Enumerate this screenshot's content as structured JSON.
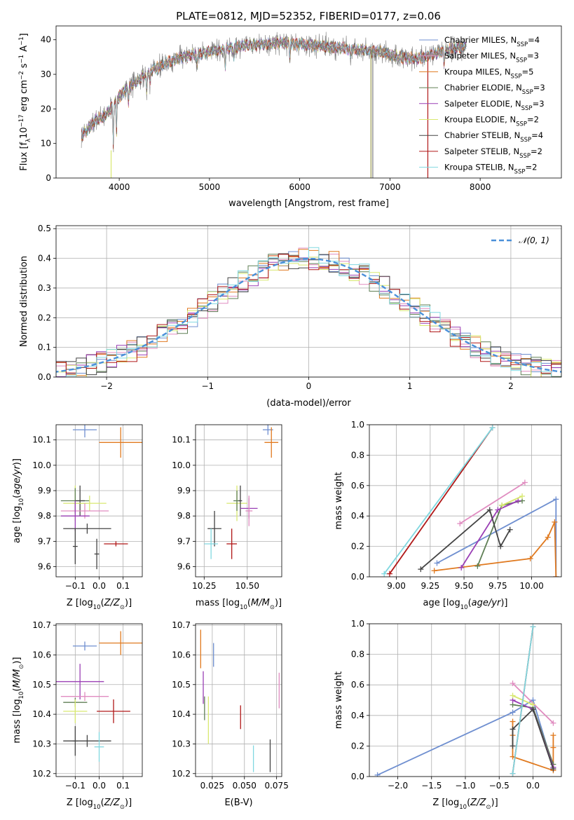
{
  "figure": {
    "title": "PLATE=0812, MJD=52352, FIBERID=0177, z=0.06"
  },
  "colors": {
    "Chabrier MILES": "#6f8fd0",
    "Salpeter MILES": "#e08cc0",
    "Kroupa MILES": "#e07a20",
    "Chabrier ELODIE": "#5f7f55",
    "Salpeter ELODIE": "#9a3fb5",
    "Kroupa ELODIE": "#d8e870",
    "Chabrier STELIB": "#444444",
    "Salpeter STELIB": "#b01818",
    "Kroupa STELIB": "#80d8e0"
  },
  "chart_data": [
    {
      "id": "spectrum",
      "type": "line",
      "xlabel": "wavelength [Angstrom, rest frame]",
      "ylabel": "Flux [f_λ10^-17 erg cm^-2 s^-1 A^-1]",
      "xlim": [
        3300,
        8900
      ],
      "ylim": [
        0,
        44
      ],
      "xticks": [
        4000,
        5000,
        6000,
        7000,
        8000
      ],
      "yticks": [
        0,
        10,
        20,
        30,
        40
      ],
      "grid": false,
      "legend_position": "top-right",
      "legend": [
        {
          "label": "Chabrier MILES, N",
          "sub": "SSP",
          "suffix": "=4",
          "model": "Chabrier MILES"
        },
        {
          "label": "Salpeter MILES, N",
          "sub": "SSP",
          "suffix": "=3",
          "model": "Salpeter MILES"
        },
        {
          "label": "Kroupa MILES, N",
          "sub": "SSP",
          "suffix": "=5",
          "model": "Kroupa MILES"
        },
        {
          "label": "Chabrier ELODIE, N",
          "sub": "SSP",
          "suffix": "=3",
          "model": "Chabrier ELODIE"
        },
        {
          "label": "Salpeter ELODIE, N",
          "sub": "SSP",
          "suffix": "=3",
          "model": "Salpeter ELODIE"
        },
        {
          "label": "Kroupa ELODIE, N",
          "sub": "SSP",
          "suffix": "=2",
          "model": "Kroupa ELODIE"
        },
        {
          "label": "Chabrier STELIB, N",
          "sub": "SSP",
          "suffix": "=4",
          "model": "Chabrier STELIB"
        },
        {
          "label": "Salpeter STELIB, N",
          "sub": "SSP",
          "suffix": "=2",
          "model": "Salpeter STELIB"
        },
        {
          "label": "Kroupa STELIB, N",
          "sub": "SSP",
          "suffix": "=2",
          "model": "Kroupa STELIB"
        }
      ],
      "continuum": {
        "x": [
          3580,
          3650,
          3750,
          3850,
          3950,
          4050,
          4200,
          4350,
          4500,
          4700,
          4900,
          5100,
          5300,
          5500,
          5700,
          5900,
          6100,
          6300,
          6500,
          6700,
          6900,
          7100,
          7300,
          7500,
          7700,
          7850
        ],
        "y": [
          12,
          14,
          17,
          18,
          22,
          25,
          28,
          31,
          33,
          35,
          36,
          37,
          38,
          38.5,
          39,
          39,
          38.5,
          38,
          37.5,
          37,
          36.5,
          35,
          34.5,
          36,
          37.5,
          38
        ]
      }
    },
    {
      "id": "residuals",
      "type": "line",
      "xlabel": "(data-model)/error",
      "ylabel": "Normed distribution",
      "xlim": [
        -2.5,
        2.5
      ],
      "ylim": [
        0,
        0.51
      ],
      "xticks": [
        -2,
        -1,
        0,
        1,
        2
      ],
      "yticks": [
        0.0,
        0.1,
        0.2,
        0.3,
        0.4,
        0.5
      ],
      "grid": true,
      "legend_position": "top-right",
      "legend": [
        {
          "label": "𝒩(0, 1)",
          "style": "dashed",
          "color": "#4a90d9"
        }
      ]
    },
    {
      "id": "age_vs_Z",
      "type": "scatter",
      "xlabel": "Z [log10(Z/Z⊙)]",
      "ylabel": "age  [log10(age/yr)]",
      "xlim": [
        -0.18,
        0.18
      ],
      "ylim": [
        9.56,
        10.16
      ],
      "xticks": [
        -0.1,
        0.0,
        0.1
      ],
      "yticks": [
        9.6,
        9.7,
        9.8,
        9.9,
        10.0,
        10.1
      ],
      "grid": true,
      "points": [
        {
          "model": "Chabrier MILES",
          "x": -0.06,
          "y": 10.14,
          "xerr": 0.05,
          "yerr": 0.03
        },
        {
          "model": "Kroupa MILES",
          "x": 0.09,
          "y": 10.09,
          "xerr": 0.09,
          "yerr": 0.06
        },
        {
          "model": "Kroupa ELODIE",
          "x": -0.1,
          "y": 9.85,
          "xerr": 0.05,
          "yerr": 0.07
        },
        {
          "model": "Chabrier ELODIE",
          "x": -0.1,
          "y": 9.86,
          "xerr": 0.06,
          "yerr": 0.05
        },
        {
          "model": "Chabrier STELIB",
          "x": -0.08,
          "y": 9.86,
          "xerr": 0.02,
          "yerr": 0.06
        },
        {
          "model": "Kroupa ELODIE",
          "x": -0.04,
          "y": 9.85,
          "xerr": 0.07,
          "yerr": 0.03
        },
        {
          "model": "Salpeter MILES",
          "x": -0.06,
          "y": 9.82,
          "xerr": 0.1,
          "yerr": 0.03
        },
        {
          "model": "Salpeter ELODIE",
          "x": -0.1,
          "y": 9.8,
          "xerr": 0.06,
          "yerr": 0.06
        },
        {
          "model": "Chabrier STELIB",
          "x": -0.05,
          "y": 9.75,
          "xerr": 0.1,
          "yerr": 0.02
        },
        {
          "model": "Chabrier STELIB",
          "x": -0.1,
          "y": 9.68,
          "xerr": 0.01,
          "yerr": 0.07
        },
        {
          "model": "Salpeter STELIB",
          "x": 0.07,
          "y": 9.69,
          "xerr": 0.05,
          "yerr": 0.01
        },
        {
          "model": "Chabrier STELIB",
          "x": -0.01,
          "y": 9.65,
          "xerr": 0.01,
          "yerr": 0.06
        }
      ]
    },
    {
      "id": "age_vs_mass",
      "type": "scatter",
      "xlabel": "mass [log10(M/M⊙)]",
      "ylabel": "",
      "xlim": [
        10.2,
        10.7
      ],
      "ylim": [
        9.56,
        10.16
      ],
      "xticks": [
        10.25,
        10.5
      ],
      "yticks": [
        9.6,
        9.7,
        9.8,
        9.9,
        10.0,
        10.1
      ],
      "grid": true,
      "points": [
        {
          "model": "Chabrier MILES",
          "x": 10.62,
          "y": 10.14,
          "xerr": 0.03,
          "yerr": 0.02
        },
        {
          "model": "Kroupa MILES",
          "x": 10.64,
          "y": 10.09,
          "xerr": 0.04,
          "yerr": 0.06
        },
        {
          "model": "Kroupa ELODIE",
          "x": 10.44,
          "y": 9.85,
          "xerr": 0.06,
          "yerr": 0.07
        },
        {
          "model": "Chabrier ELODIE",
          "x": 10.44,
          "y": 9.86,
          "xerr": 0.02,
          "yerr": 0.04
        },
        {
          "model": "Chabrier STELIB",
          "x": 10.46,
          "y": 9.86,
          "xerr": 0.01,
          "yerr": 0.06
        },
        {
          "model": "Salpeter ELODIE",
          "x": 10.51,
          "y": 9.83,
          "xerr": 0.05,
          "yerr": 0.04
        },
        {
          "model": "Salpeter MILES",
          "x": 10.51,
          "y": 9.82,
          "xerr": 0.02,
          "yerr": 0.06
        },
        {
          "model": "Chabrier STELIB",
          "x": 10.31,
          "y": 9.75,
          "xerr": 0.04,
          "yerr": 0.07
        },
        {
          "model": "Kroupa STELIB",
          "x": 10.29,
          "y": 9.69,
          "xerr": 0.04,
          "yerr": 0.06
        },
        {
          "model": "Salpeter STELIB",
          "x": 10.41,
          "y": 9.69,
          "xerr": 0.03,
          "yerr": 0.06
        }
      ]
    },
    {
      "id": "weight_vs_age",
      "type": "line",
      "xlabel": "age  [log10(age/yr)]",
      "ylabel": "mass weight",
      "xlim": [
        8.8,
        10.22
      ],
      "ylim": [
        0,
        1
      ],
      "xticks": [
        9.0,
        9.25,
        9.5,
        9.75,
        10.0
      ],
      "yticks": [
        0.0,
        0.2,
        0.4,
        0.6,
        0.8,
        1.0
      ],
      "grid": true,
      "series": [
        {
          "model": "Chabrier MILES",
          "x": [
            9.3,
            10.18,
            10.18
          ],
          "y": [
            0.09,
            0.51,
            0.0
          ]
        },
        {
          "model": "Salpeter MILES",
          "x": [
            9.47,
            9.95
          ],
          "y": [
            0.35,
            0.62
          ]
        },
        {
          "model": "Kroupa MILES",
          "x": [
            9.28,
            9.99,
            10.12,
            10.17,
            10.18
          ],
          "y": [
            0.04,
            0.12,
            0.26,
            0.36,
            0.0
          ]
        },
        {
          "model": "Chabrier ELODIE",
          "x": [
            9.6,
            9.78,
            9.93
          ],
          "y": [
            0.07,
            0.47,
            0.5
          ]
        },
        {
          "model": "Salpeter ELODIE",
          "x": [
            9.48,
            9.75,
            9.9
          ],
          "y": [
            0.06,
            0.44,
            0.5
          ]
        },
        {
          "model": "Kroupa ELODIE",
          "x": [
            9.78,
            9.93
          ],
          "y": [
            0.47,
            0.53
          ]
        },
        {
          "model": "Chabrier STELIB",
          "x": [
            9.18,
            9.69,
            9.77,
            9.84
          ],
          "y": [
            0.05,
            0.44,
            0.2,
            0.31
          ]
        },
        {
          "model": "Salpeter STELIB",
          "x": [
            8.95,
            9.71
          ],
          "y": [
            0.02,
            0.98
          ]
        },
        {
          "model": "Kroupa STELIB",
          "x": [
            8.91,
            9.71
          ],
          "y": [
            0.02,
            0.98
          ]
        }
      ]
    },
    {
      "id": "mass_vs_Z",
      "type": "scatter",
      "xlabel": "Z [log10(Z/Z⊙)]",
      "ylabel": "mass [log10(M/M⊙)]",
      "xlim": [
        -0.18,
        0.18
      ],
      "ylim": [
        10.19,
        10.705
      ],
      "xticks": [
        -0.1,
        0.0,
        0.1
      ],
      "yticks": [
        10.2,
        10.3,
        10.4,
        10.5,
        10.6,
        10.7
      ],
      "grid": true,
      "points": [
        {
          "model": "Chabrier MILES",
          "x": -0.06,
          "y": 10.63,
          "xerr": 0.05,
          "yerr": 0.015
        },
        {
          "model": "Kroupa MILES",
          "x": 0.09,
          "y": 10.64,
          "xerr": 0.09,
          "yerr": 0.04
        },
        {
          "model": "Salpeter ELODIE",
          "x": -0.08,
          "y": 10.51,
          "xerr": 0.1,
          "yerr": 0.06
        },
        {
          "model": "Salpeter MILES",
          "x": -0.06,
          "y": 10.46,
          "xerr": 0.1,
          "yerr": 0.015
        },
        {
          "model": "Chabrier ELODIE",
          "x": -0.1,
          "y": 10.44,
          "xerr": 0.05,
          "yerr": 0.015
        },
        {
          "model": "Kroupa ELODIE",
          "x": -0.1,
          "y": 10.41,
          "xerr": 0.05,
          "yerr": 0.04
        },
        {
          "model": "Salpeter STELIB",
          "x": 0.06,
          "y": 10.41,
          "xerr": 0.07,
          "yerr": 0.04
        },
        {
          "model": "Chabrier STELIB",
          "x": -0.05,
          "y": 10.31,
          "xerr": 0.1,
          "yerr": 0.02
        },
        {
          "model": "Chabrier STELIB",
          "x": -0.1,
          "y": 10.31,
          "xerr": 0.01,
          "yerr": 0.05
        },
        {
          "model": "Kroupa STELIB",
          "x": 0.0,
          "y": 10.29,
          "xerr": 0.02,
          "yerr": 0.05
        }
      ]
    },
    {
      "id": "mass_vs_EBV",
      "type": "scatter",
      "xlabel": "E(B-V)",
      "ylabel": "",
      "xlim": [
        0.012,
        0.079
      ],
      "ylim": [
        10.19,
        10.705
      ],
      "xticks": [
        0.025,
        0.05,
        0.075
      ],
      "yticks": [
        10.2,
        10.3,
        10.4,
        10.5,
        10.6,
        10.7
      ],
      "grid": true,
      "points": [
        {
          "model": "Kroupa MILES",
          "x": 0.016,
          "y": 10.62,
          "xerr": 0.0,
          "yerr": 0.065
        },
        {
          "model": "Chabrier MILES",
          "x": 0.026,
          "y": 10.6,
          "xerr": 0.0,
          "yerr": 0.04
        },
        {
          "model": "Salpeter ELODIE",
          "x": 0.018,
          "y": 10.49,
          "xerr": 0.0,
          "yerr": 0.055
        },
        {
          "model": "Chabrier ELODIE",
          "x": 0.019,
          "y": 10.42,
          "xerr": 0.0,
          "yerr": 0.04
        },
        {
          "model": "Kroupa ELODIE",
          "x": 0.022,
          "y": 10.38,
          "xerr": 0.0,
          "yerr": 0.08
        },
        {
          "model": "Salpeter STELIB",
          "x": 0.047,
          "y": 10.39,
          "xerr": 0.0,
          "yerr": 0.04
        },
        {
          "model": "Salpeter MILES",
          "x": 0.077,
          "y": 10.48,
          "xerr": 0.0,
          "yerr": 0.06
        },
        {
          "model": "Kroupa STELIB",
          "x": 0.057,
          "y": 10.25,
          "xerr": 0.0,
          "yerr": 0.045
        },
        {
          "model": "Chabrier STELIB",
          "x": 0.07,
          "y": 10.26,
          "xerr": 0.0,
          "yerr": 0.055
        }
      ]
    },
    {
      "id": "weight_vs_Z",
      "type": "line",
      "xlabel": "Z [log10(Z/Z⊙)]",
      "ylabel": "mass weight",
      "xlim": [
        -2.42,
        0.42
      ],
      "ylim": [
        0,
        1
      ],
      "xticks": [
        -2.0,
        -1.5,
        -1.0,
        -0.5,
        0.0
      ],
      "yticks": [
        0.0,
        0.2,
        0.4,
        0.6,
        0.8,
        1.0
      ],
      "grid": true,
      "series": [
        {
          "model": "Chabrier MILES",
          "x": [
            -2.3,
            -0.3,
            0.0,
            0.3
          ],
          "y": [
            0.01,
            0.42,
            0.5,
            0.06
          ]
        },
        {
          "model": "Salpeter MILES",
          "x": [
            -0.3,
            0.3
          ],
          "y": [
            0.61,
            0.35
          ]
        },
        {
          "model": "Kroupa MILES",
          "x": [
            -0.3,
            -0.3,
            -0.3,
            0.3,
            0.3,
            0.3
          ],
          "y": [
            0.36,
            0.27,
            0.13,
            0.04,
            0.19,
            0.27
          ]
        },
        {
          "model": "Chabrier ELODIE",
          "x": [
            -0.3,
            0.0,
            0.3
          ],
          "y": [
            0.47,
            0.45,
            0.08
          ]
        },
        {
          "model": "Salpeter ELODIE",
          "x": [
            -0.3,
            0.0,
            0.3
          ],
          "y": [
            0.5,
            0.44,
            0.06
          ]
        },
        {
          "model": "Kroupa ELODIE",
          "x": [
            -0.3,
            0.0
          ],
          "y": [
            0.53,
            0.47
          ]
        },
        {
          "model": "Chabrier STELIB",
          "x": [
            -0.3,
            -0.3,
            0.0,
            0.3
          ],
          "y": [
            0.2,
            0.31,
            0.44,
            0.05
          ]
        },
        {
          "model": "Salpeter STELIB",
          "x": [
            -0.3,
            0.0
          ],
          "y": [
            0.02,
            0.98
          ]
        },
        {
          "model": "Kroupa STELIB",
          "x": [
            -0.3,
            0.0
          ],
          "y": [
            0.02,
            0.98
          ]
        }
      ]
    }
  ]
}
